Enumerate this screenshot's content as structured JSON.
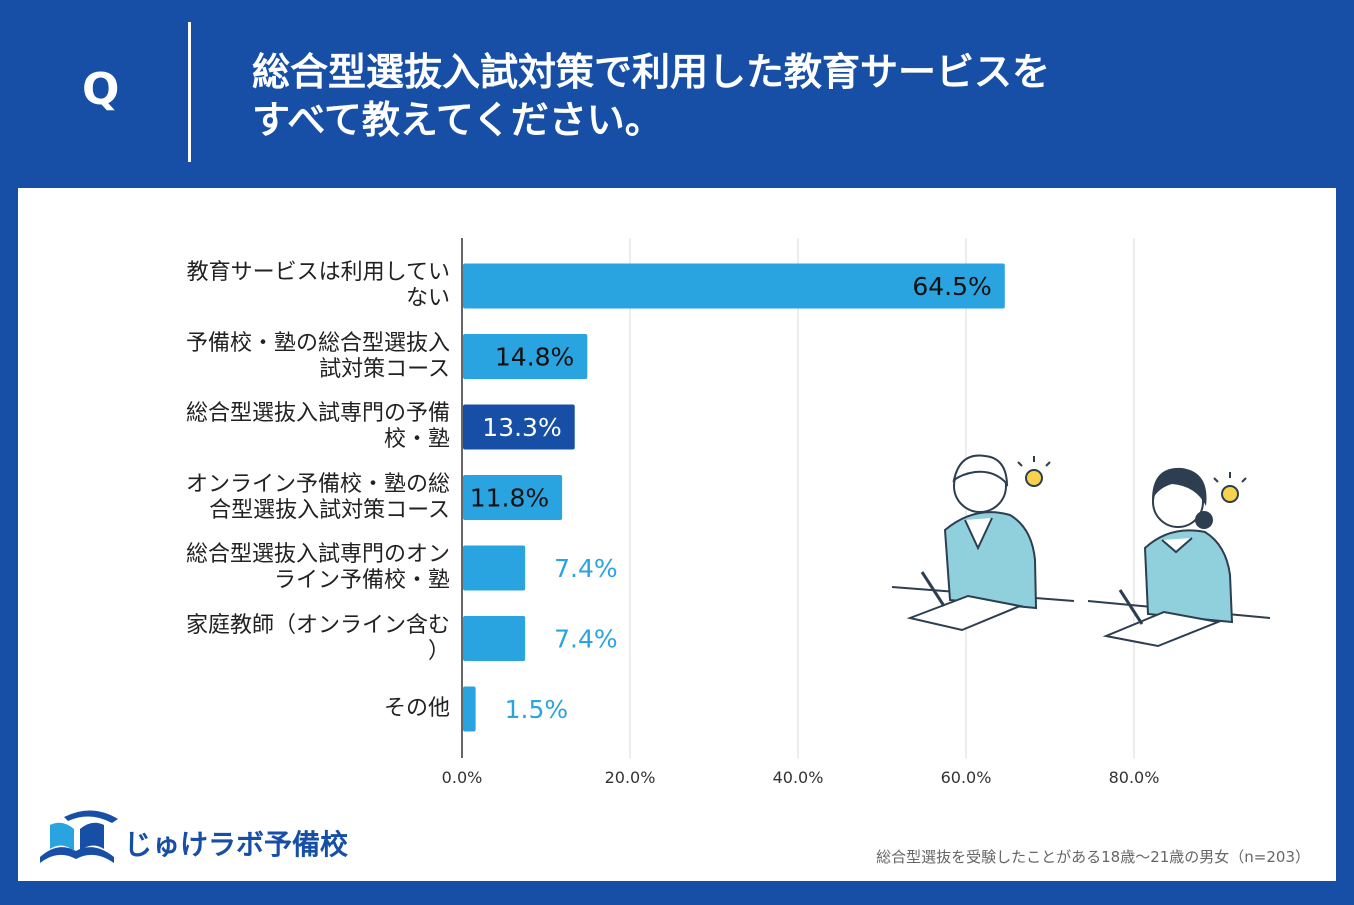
{
  "header": {
    "q_mark": "Q",
    "question_line1": "総合型選抜入試対策で利用した教育サービスを",
    "question_line2": "すべて教えてください。"
  },
  "chart_data": {
    "type": "bar",
    "orientation": "horizontal",
    "categories": [
      [
        "教育サービスは利用してい",
        "ない"
      ],
      [
        "予備校・塾の総合型選抜入",
        "試対策コース"
      ],
      [
        "総合型選抜入試専門の予備",
        "校・塾"
      ],
      [
        "オンライン予備校・塾の総",
        "合型選抜入試対策コース"
      ],
      [
        "総合型選抜入試専門のオン",
        "ライン予備校・塾"
      ],
      [
        "家庭教師（オンライン含む",
        "）"
      ],
      [
        "その他"
      ]
    ],
    "values": [
      64.5,
      14.8,
      13.3,
      11.8,
      7.4,
      7.4,
      1.5
    ],
    "value_labels": [
      "64.5%",
      "14.8%",
      "13.3%",
      "11.8%",
      "7.4%",
      "7.4%",
      "1.5%"
    ],
    "bar_colors": [
      "#2aa4e0",
      "#2aa4e0",
      "#174fa6",
      "#2aa4e0",
      "#2aa4e0",
      "#2aa4e0",
      "#2aa4e0"
    ],
    "xlim": [
      0,
      80
    ],
    "xticks": [
      "0.0%",
      "20.0%",
      "40.0%",
      "60.0%",
      "80.0%"
    ],
    "grid": true,
    "title": "",
    "xlabel": "",
    "ylabel": ""
  },
  "logo": {
    "text": "じゅけラボ予備校"
  },
  "footnote": "総合型選抜を受験したことがある18歳～21歳の男女（n=203）",
  "colors": {
    "background": "#174fa6",
    "bar": "#2aa4e0",
    "bar_highlight": "#174fa6",
    "outside_label": "#2aa4e0"
  }
}
